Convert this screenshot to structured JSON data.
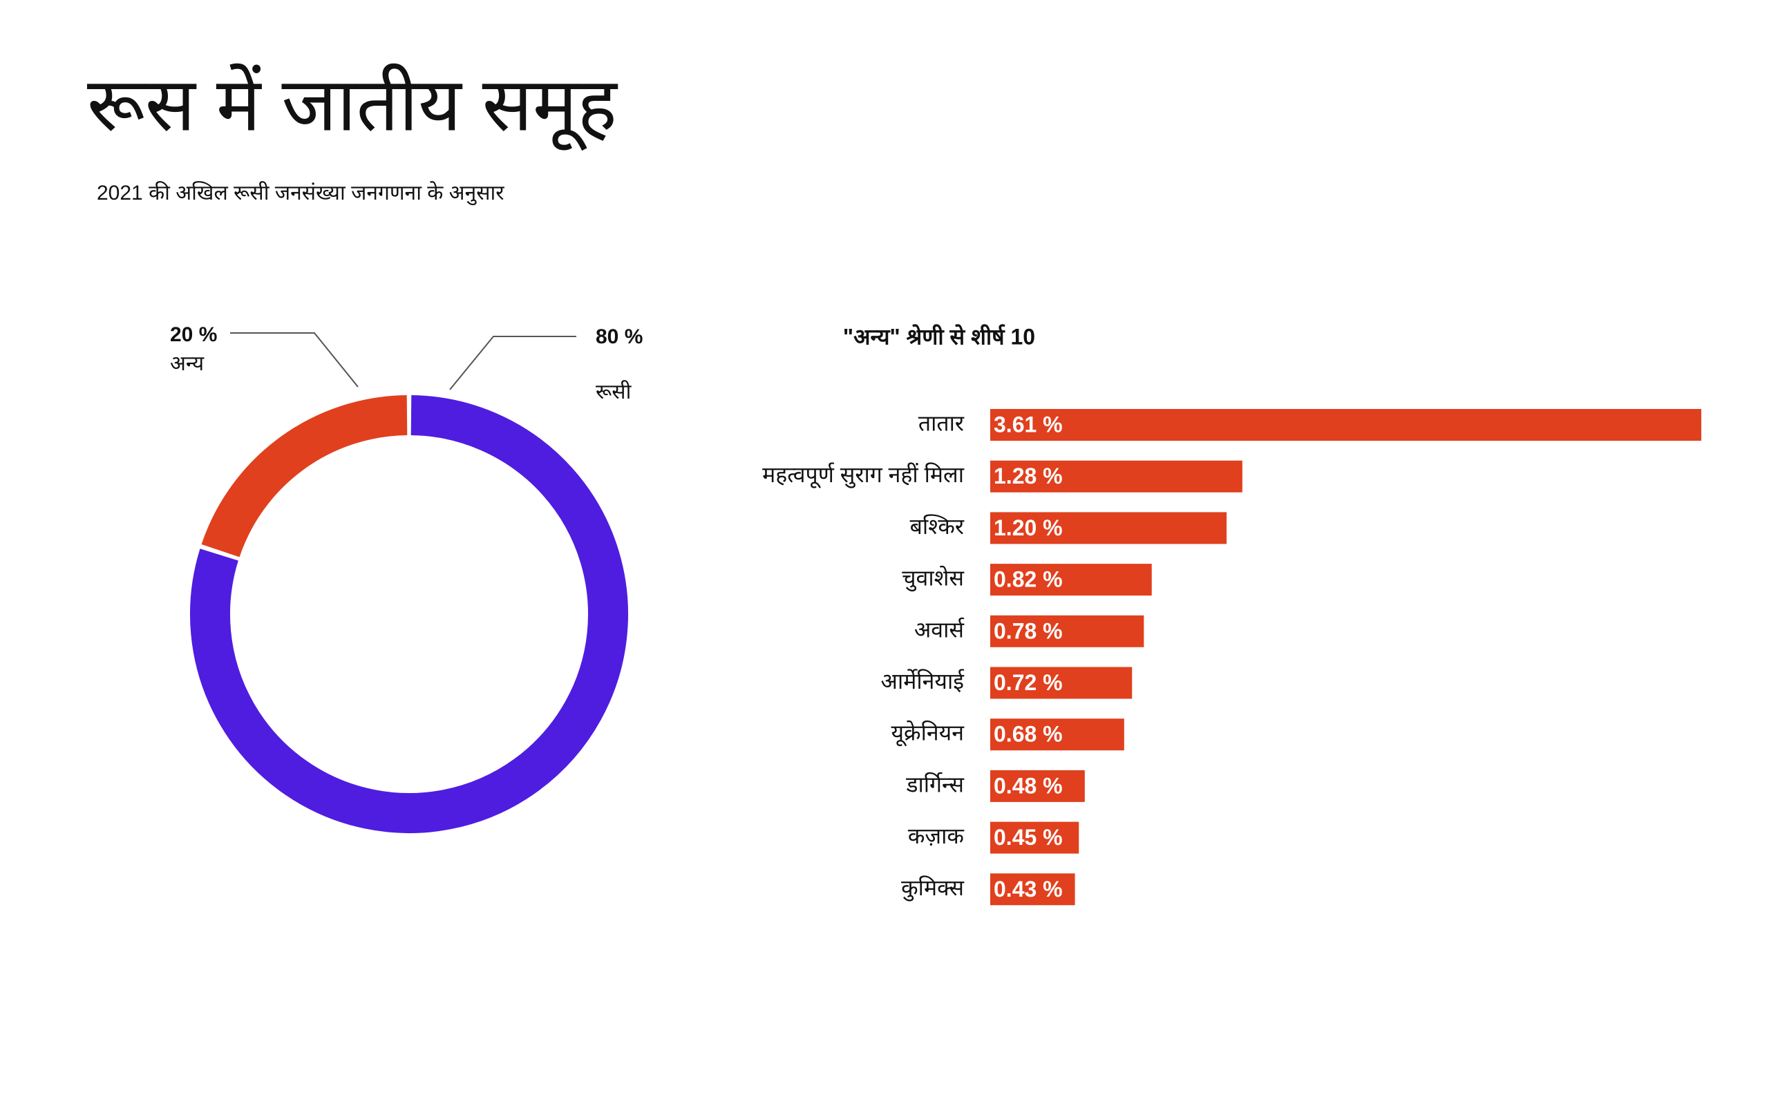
{
  "title": "रूस में जातीय समूह",
  "subtitle": "2021 की अखिल रूसी जनसंख्या जनगणना के अनुसार",
  "chart_data": [
    {
      "type": "pie",
      "categories": [
        "रूसी",
        "अन्य"
      ],
      "values": [
        80,
        20
      ],
      "value_labels": [
        "80 %",
        "20 %"
      ],
      "colors": [
        "#4f1de0",
        "#e0401e"
      ]
    },
    {
      "type": "bar",
      "title": "\"अन्य\" श्रेणी से शीर्ष 10",
      "categories": [
        "तातार",
        "महत्वपूर्ण सुराग नहीं मिला",
        "बश्किर",
        "चुवाशेस",
        "अवार्स",
        "आर्मेनियाई",
        "यूक्रेनियन",
        "डार्गिन्स",
        "कज़ाक",
        "कुमिक्स"
      ],
      "values": [
        3.61,
        1.28,
        1.2,
        0.82,
        0.78,
        0.72,
        0.68,
        0.48,
        0.45,
        0.43
      ],
      "value_labels": [
        "3.61 %",
        "1.28 %",
        "1.20 %",
        "0.82 %",
        "0.78 %",
        "0.72 %",
        "0.68 %",
        "0.48 %",
        "0.45 %",
        "0.43 %"
      ],
      "color": "#e0401e"
    }
  ]
}
